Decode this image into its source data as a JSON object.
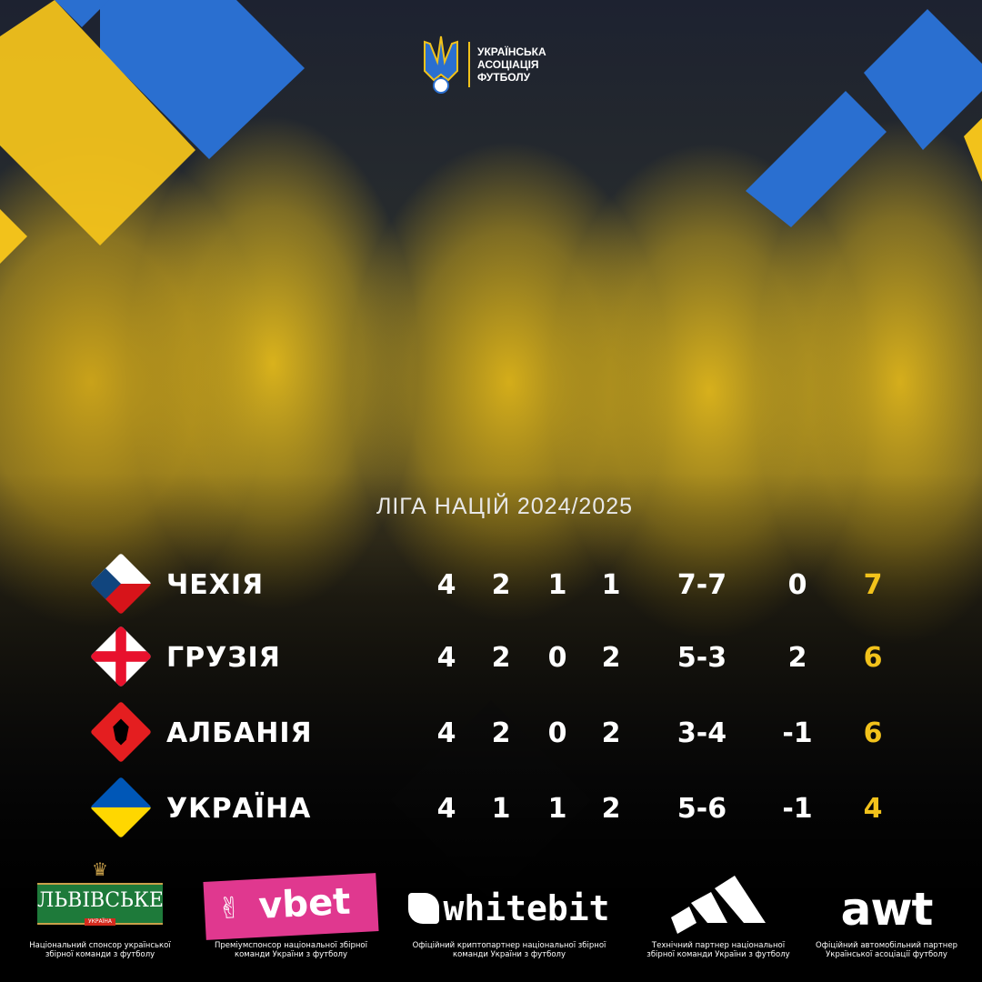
{
  "header": {
    "org_name_lines": [
      "УКРАЇНСЬКА",
      "АСОЦІАЦІЯ",
      "ФУТБОЛУ"
    ]
  },
  "title": "ЛІГА НАЦІЙ 2024/2025",
  "colors": {
    "yellow": "#f2c21b",
    "blue": "#2a6fd0",
    "background": "#000000"
  },
  "standings": [
    {
      "team": "ЧЕХІЯ",
      "flag": "czechia-flag",
      "played": "4",
      "won": "2",
      "drawn": "1",
      "lost": "1",
      "goals": "7-7",
      "diff": "0",
      "points": "7"
    },
    {
      "team": "ГРУЗІЯ",
      "flag": "georgia-flag",
      "played": "4",
      "won": "2",
      "drawn": "0",
      "lost": "2",
      "goals": "5-3",
      "diff": "2",
      "points": "6"
    },
    {
      "team": "АЛБАНІЯ",
      "flag": "albania-flag",
      "played": "4",
      "won": "2",
      "drawn": "0",
      "lost": "2",
      "goals": "3-4",
      "diff": "-1",
      "points": "6"
    },
    {
      "team": "УКРАЇНА",
      "flag": "ukraine-flag",
      "played": "4",
      "won": "1",
      "drawn": "1",
      "lost": "2",
      "goals": "5-6",
      "diff": "-1",
      "points": "4"
    }
  ],
  "sponsors": [
    {
      "logo": "ЛЬВІВСЬКЕ",
      "logo_sub": "УКРАЇНА",
      "caption_lines": [
        "Національний спонсор української",
        "збірної команди з футболу"
      ]
    },
    {
      "logo": "vbet",
      "caption_lines": [
        "Преміумспонсор національної збірної",
        "команди України з футболу"
      ]
    },
    {
      "logo": "whitebit",
      "caption_lines": [
        "Офіційний криптопартнер національної збірної",
        "команди України з футболу"
      ]
    },
    {
      "logo": "adidas",
      "caption_lines": [
        "Технічний партнер національної",
        "збірної команди України з футболу"
      ]
    },
    {
      "logo": "awt",
      "caption_lines": [
        "Офіційний автомобільний партнер",
        "Української асоціації футболу"
      ]
    }
  ]
}
